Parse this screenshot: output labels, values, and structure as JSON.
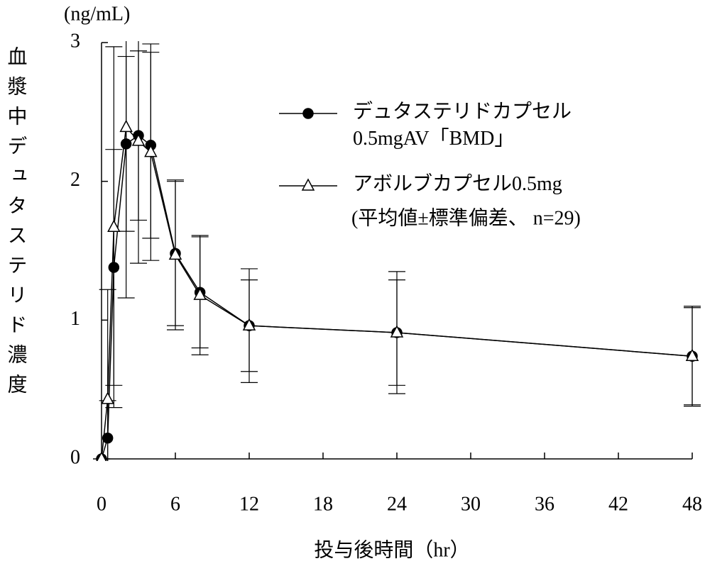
{
  "chart_data": {
    "type": "line",
    "y_unit": "(ng/mL)",
    "y_label": "血漿中デュタステリド濃度",
    "x_label": "投与後時間（hr）",
    "annotation": "(平均値±標準偏差、 n=29)",
    "x": [
      0,
      0.5,
      1,
      2,
      3,
      4,
      6,
      8,
      12,
      24,
      48
    ],
    "series": [
      {
        "name": "デュタステリドカプセル\n0.5mgAV「BMD」",
        "marker": "circle",
        "color": "#000000",
        "values": [
          0,
          0.15,
          1.38,
          2.27,
          2.33,
          2.26,
          1.48,
          1.2,
          0.96,
          0.91,
          0.74
        ],
        "errors": [
          0,
          0.27,
          0.85,
          0.63,
          0.61,
          0.67,
          0.52,
          0.4,
          0.33,
          0.44,
          0.36
        ]
      },
      {
        "name": "アボルブカプセル0.5mg",
        "marker": "triangle",
        "color": "#000000",
        "values": [
          0,
          0.43,
          1.67,
          2.39,
          2.29,
          2.21,
          1.47,
          1.18,
          0.96,
          0.91,
          0.74
        ],
        "errors": [
          0,
          0.79,
          1.3,
          1.23,
          0.88,
          0.78,
          0.54,
          0.43,
          0.41,
          0.38,
          0.35
        ]
      }
    ],
    "xlim": [
      0,
      48
    ],
    "xticks": [
      0,
      6,
      12,
      18,
      24,
      30,
      36,
      42,
      48
    ],
    "ylim": [
      0,
      3
    ],
    "yticks": [
      0,
      1,
      2,
      3
    ],
    "grid": false
  }
}
